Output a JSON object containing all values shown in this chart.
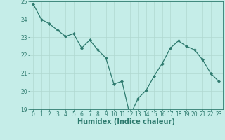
{
  "x": [
    0,
    1,
    2,
    3,
    4,
    5,
    6,
    7,
    8,
    9,
    10,
    11,
    12,
    13,
    14,
    15,
    16,
    17,
    18,
    19,
    20,
    21,
    22,
    23
  ],
  "y": [
    24.85,
    24.0,
    23.75,
    23.4,
    23.05,
    23.2,
    22.4,
    22.85,
    22.3,
    21.85,
    20.4,
    20.55,
    18.65,
    19.6,
    20.05,
    20.85,
    21.55,
    22.4,
    22.8,
    22.5,
    22.3,
    21.75,
    21.0,
    20.55
  ],
  "line_color": "#2d7a6e",
  "marker": "D",
  "marker_size": 2.2,
  "bg_color": "#c5ede8",
  "grid_color": "#b0d8d0",
  "xlabel": "Humidex (Indice chaleur)",
  "ylim": [
    19,
    25
  ],
  "xlim": [
    -0.5,
    23.5
  ],
  "yticks": [
    19,
    20,
    21,
    22,
    23,
    24,
    25
  ],
  "xticks": [
    0,
    1,
    2,
    3,
    4,
    5,
    6,
    7,
    8,
    9,
    10,
    11,
    12,
    13,
    14,
    15,
    16,
    17,
    18,
    19,
    20,
    21,
    22,
    23
  ],
  "axis_color": "#2d7a6e",
  "tick_label_color": "#2d7a6e",
  "label_fontsize": 7,
  "tick_fontsize": 5.5,
  "linewidth": 0.9
}
